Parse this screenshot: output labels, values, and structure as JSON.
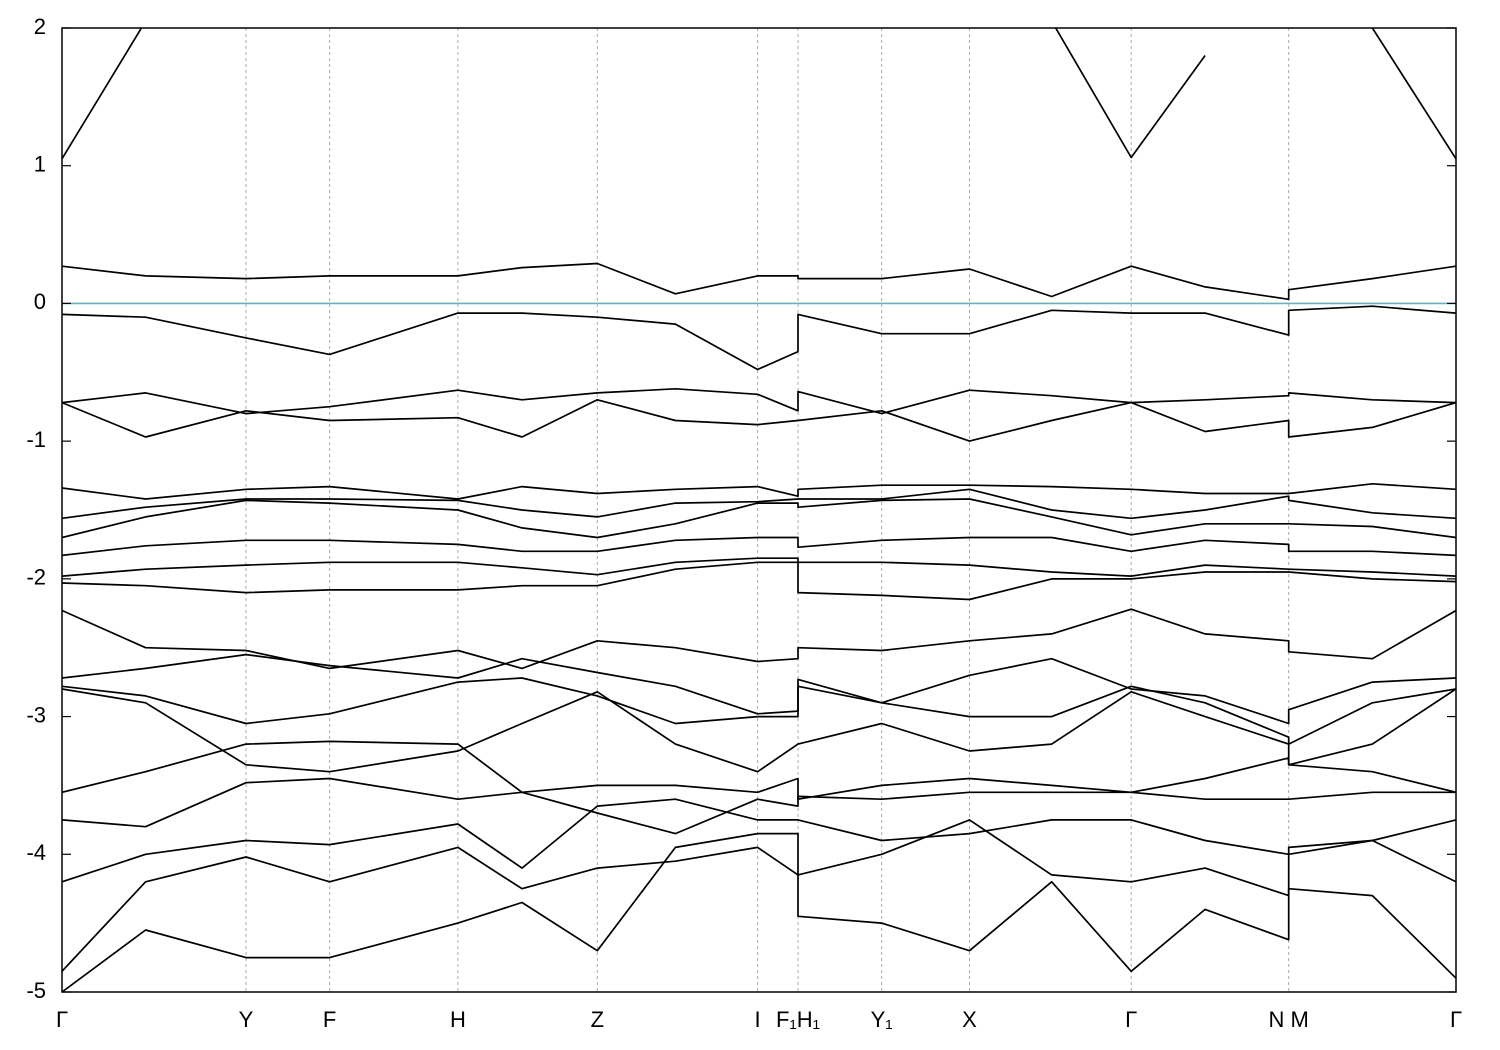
{
  "chart_data": {
    "type": "line",
    "color": "#000000",
    "fermi_level": 0,
    "fermi_color": "#5fb3c8",
    "xlim": [
      0,
      10
    ],
    "xticks": [
      {
        "value": 0,
        "label": "Γ"
      },
      {
        "value": 1.32,
        "label": "Y"
      },
      {
        "value": 1.92,
        "label": "F"
      },
      {
        "value": 2.84,
        "label": "H"
      },
      {
        "value": 3.84,
        "label": "Z"
      },
      {
        "value": 4.99,
        "label": "I"
      },
      {
        "value": 5.28,
        "label": "F₁H₁"
      },
      {
        "value": 5.88,
        "label": "Y₁"
      },
      {
        "value": 6.51,
        "label": "X"
      },
      {
        "value": 7.67,
        "label": "Γ"
      },
      {
        "value": 8.8,
        "label": "N M"
      },
      {
        "value": 10,
        "label": "Γ"
      }
    ],
    "ylim": [
      -5,
      2
    ],
    "yticks": [
      2,
      1,
      0,
      -1,
      -2,
      -3,
      -4,
      -5
    ],
    "grid": true,
    "x": [
      0,
      0.6,
      1.32,
      1.92,
      2.84,
      3.3,
      3.84,
      4.4,
      4.99,
      5.28,
      5.28,
      5.88,
      6.51,
      7.1,
      7.67,
      8.2,
      8.8,
      8.8,
      9.4,
      10
    ],
    "series": [
      {
        "values": [
          1.05,
          2.05,
          null,
          null,
          null,
          null,
          null,
          null,
          null,
          null,
          null,
          null,
          null,
          2.05,
          1.06,
          1.8,
          null,
          null,
          2.0,
          1.05
        ]
      },
      {
        "values": [
          0.27,
          0.2,
          0.18,
          0.2,
          0.2,
          0.26,
          0.29,
          0.07,
          0.2,
          0.2,
          0.18,
          0.18,
          0.25,
          0.05,
          0.27,
          0.12,
          0.03,
          0.1,
          0.18,
          0.27
        ]
      },
      {
        "values": [
          -0.08,
          -0.1,
          -0.25,
          -0.37,
          -0.07,
          -0.07,
          -0.1,
          -0.15,
          -0.48,
          -0.35,
          -0.08,
          -0.22,
          -0.22,
          -0.05,
          -0.07,
          -0.07,
          -0.23,
          -0.05,
          -0.02,
          -0.07
        ]
      },
      {
        "values": [
          -0.72,
          -0.65,
          -0.8,
          -0.75,
          -0.63,
          -0.7,
          -0.65,
          -0.62,
          -0.66,
          -0.78,
          -0.64,
          -0.8,
          -0.63,
          -0.67,
          -0.72,
          -0.7,
          -0.67,
          -0.65,
          -0.7,
          -0.72
        ]
      },
      {
        "values": [
          -0.72,
          -0.97,
          -0.78,
          -0.85,
          -0.83,
          -0.97,
          -0.7,
          -0.85,
          -0.88,
          -0.85,
          -0.85,
          -0.78,
          -1.0,
          -0.85,
          -0.72,
          -0.93,
          -0.85,
          -0.97,
          -0.9,
          -0.72
        ]
      },
      {
        "values": [
          -1.34,
          -1.42,
          -1.35,
          -1.33,
          -1.42,
          -1.33,
          -1.38,
          -1.35,
          -1.33,
          -1.4,
          -1.35,
          -1.32,
          -1.32,
          -1.33,
          -1.35,
          -1.38,
          -1.38,
          -1.38,
          -1.31,
          -1.35
        ]
      },
      {
        "values": [
          -1.56,
          -1.48,
          -1.42,
          -1.42,
          -1.43,
          -1.5,
          -1.55,
          -1.45,
          -1.44,
          -1.42,
          -1.42,
          -1.42,
          -1.35,
          -1.5,
          -1.56,
          -1.5,
          -1.4,
          -1.43,
          -1.52,
          -1.56
        ]
      },
      {
        "values": [
          -1.7,
          -1.55,
          -1.43,
          -1.45,
          -1.5,
          -1.63,
          -1.7,
          -1.6,
          -1.45,
          -1.45,
          -1.48,
          -1.43,
          -1.42,
          -1.55,
          -1.68,
          -1.6,
          -1.6,
          -1.6,
          -1.62,
          -1.7
        ]
      },
      {
        "values": [
          -1.83,
          -1.76,
          -1.72,
          -1.72,
          -1.75,
          -1.8,
          -1.8,
          -1.72,
          -1.7,
          -1.7,
          -1.77,
          -1.72,
          -1.7,
          -1.7,
          -1.8,
          -1.72,
          -1.75,
          -1.8,
          -1.8,
          -1.83
        ]
      },
      {
        "values": [
          -1.98,
          -1.93,
          -1.9,
          -1.88,
          -1.88,
          -1.92,
          -1.97,
          -1.88,
          -1.85,
          -1.85,
          -1.88,
          -1.88,
          -1.9,
          -1.95,
          -1.98,
          -1.9,
          -1.93,
          -1.93,
          -1.95,
          -1.98
        ]
      },
      {
        "values": [
          -2.03,
          -2.05,
          -2.1,
          -2.08,
          -2.08,
          -2.05,
          -2.05,
          -1.93,
          -1.88,
          -1.88,
          -2.1,
          -2.12,
          -2.15,
          -2.0,
          -2.0,
          -1.95,
          -1.95,
          -1.95,
          -2.0,
          -2.02
        ]
      },
      {
        "values": [
          -2.23,
          -2.5,
          -2.52,
          -2.65,
          -2.52,
          -2.65,
          -2.45,
          -2.5,
          -2.6,
          -2.58,
          -2.5,
          -2.52,
          -2.45,
          -2.4,
          -2.22,
          -2.4,
          -2.45,
          -2.53,
          -2.58,
          -2.23
        ]
      },
      {
        "values": [
          -2.72,
          -2.65,
          -2.55,
          -2.63,
          -2.72,
          -2.58,
          -2.68,
          -2.78,
          -2.98,
          -2.96,
          -2.73,
          -2.9,
          -2.7,
          -2.58,
          -2.8,
          -2.85,
          -3.05,
          -2.95,
          -2.75,
          -2.72
        ]
      },
      {
        "values": [
          -2.78,
          -2.85,
          -3.05,
          -2.98,
          -2.75,
          -2.72,
          -2.85,
          -3.05,
          -3.0,
          -3.0,
          -2.78,
          -2.9,
          -3.0,
          -3.0,
          -2.78,
          -2.9,
          -3.15,
          -3.2,
          -2.9,
          -2.8
        ]
      },
      {
        "values": [
          -2.8,
          -2.9,
          -3.35,
          -3.4,
          -3.25,
          -3.05,
          -2.82,
          -3.2,
          -3.4,
          -3.2,
          -3.2,
          -3.05,
          -3.25,
          -3.2,
          -2.82,
          -3.0,
          -3.2,
          -3.35,
          -3.2,
          -2.8
        ]
      },
      {
        "values": [
          -3.55,
          -3.4,
          -3.2,
          -3.18,
          -3.2,
          -3.55,
          -3.5,
          -3.5,
          -3.55,
          -3.45,
          -3.6,
          -3.5,
          -3.45,
          -3.5,
          -3.55,
          -3.45,
          -3.3,
          -3.35,
          -3.4,
          -3.55
        ]
      },
      {
        "values": [
          -3.75,
          -3.8,
          -3.48,
          -3.45,
          -3.6,
          -3.55,
          -3.7,
          -3.85,
          -3.6,
          -3.65,
          -3.58,
          -3.6,
          -3.55,
          -3.55,
          -3.55,
          -3.6,
          -3.6,
          -3.6,
          -3.55,
          -3.55
        ]
      },
      {
        "values": [
          -4.2,
          -4.0,
          -3.9,
          -3.93,
          -3.78,
          -4.1,
          -3.65,
          -3.6,
          -3.75,
          -3.75,
          -3.75,
          -3.9,
          -3.85,
          -3.75,
          -3.75,
          -3.9,
          -4.0,
          -3.95,
          -3.9,
          -3.75
        ]
      },
      {
        "values": [
          -4.85,
          -4.2,
          -4.02,
          -4.2,
          -3.95,
          -4.25,
          -4.1,
          -4.05,
          -3.95,
          -4.15,
          -4.15,
          -4.0,
          -3.75,
          -4.15,
          -4.2,
          -4.1,
          -4.3,
          -4.0,
          -3.9,
          -4.2
        ]
      },
      {
        "values": [
          -5.0,
          -4.55,
          -4.75,
          -4.75,
          -4.5,
          -4.35,
          -4.7,
          -3.95,
          -3.85,
          -3.85,
          -4.45,
          -4.5,
          -4.7,
          -4.2,
          -4.85,
          -4.4,
          -4.62,
          -4.25,
          -4.3,
          -4.9
        ]
      }
    ]
  }
}
